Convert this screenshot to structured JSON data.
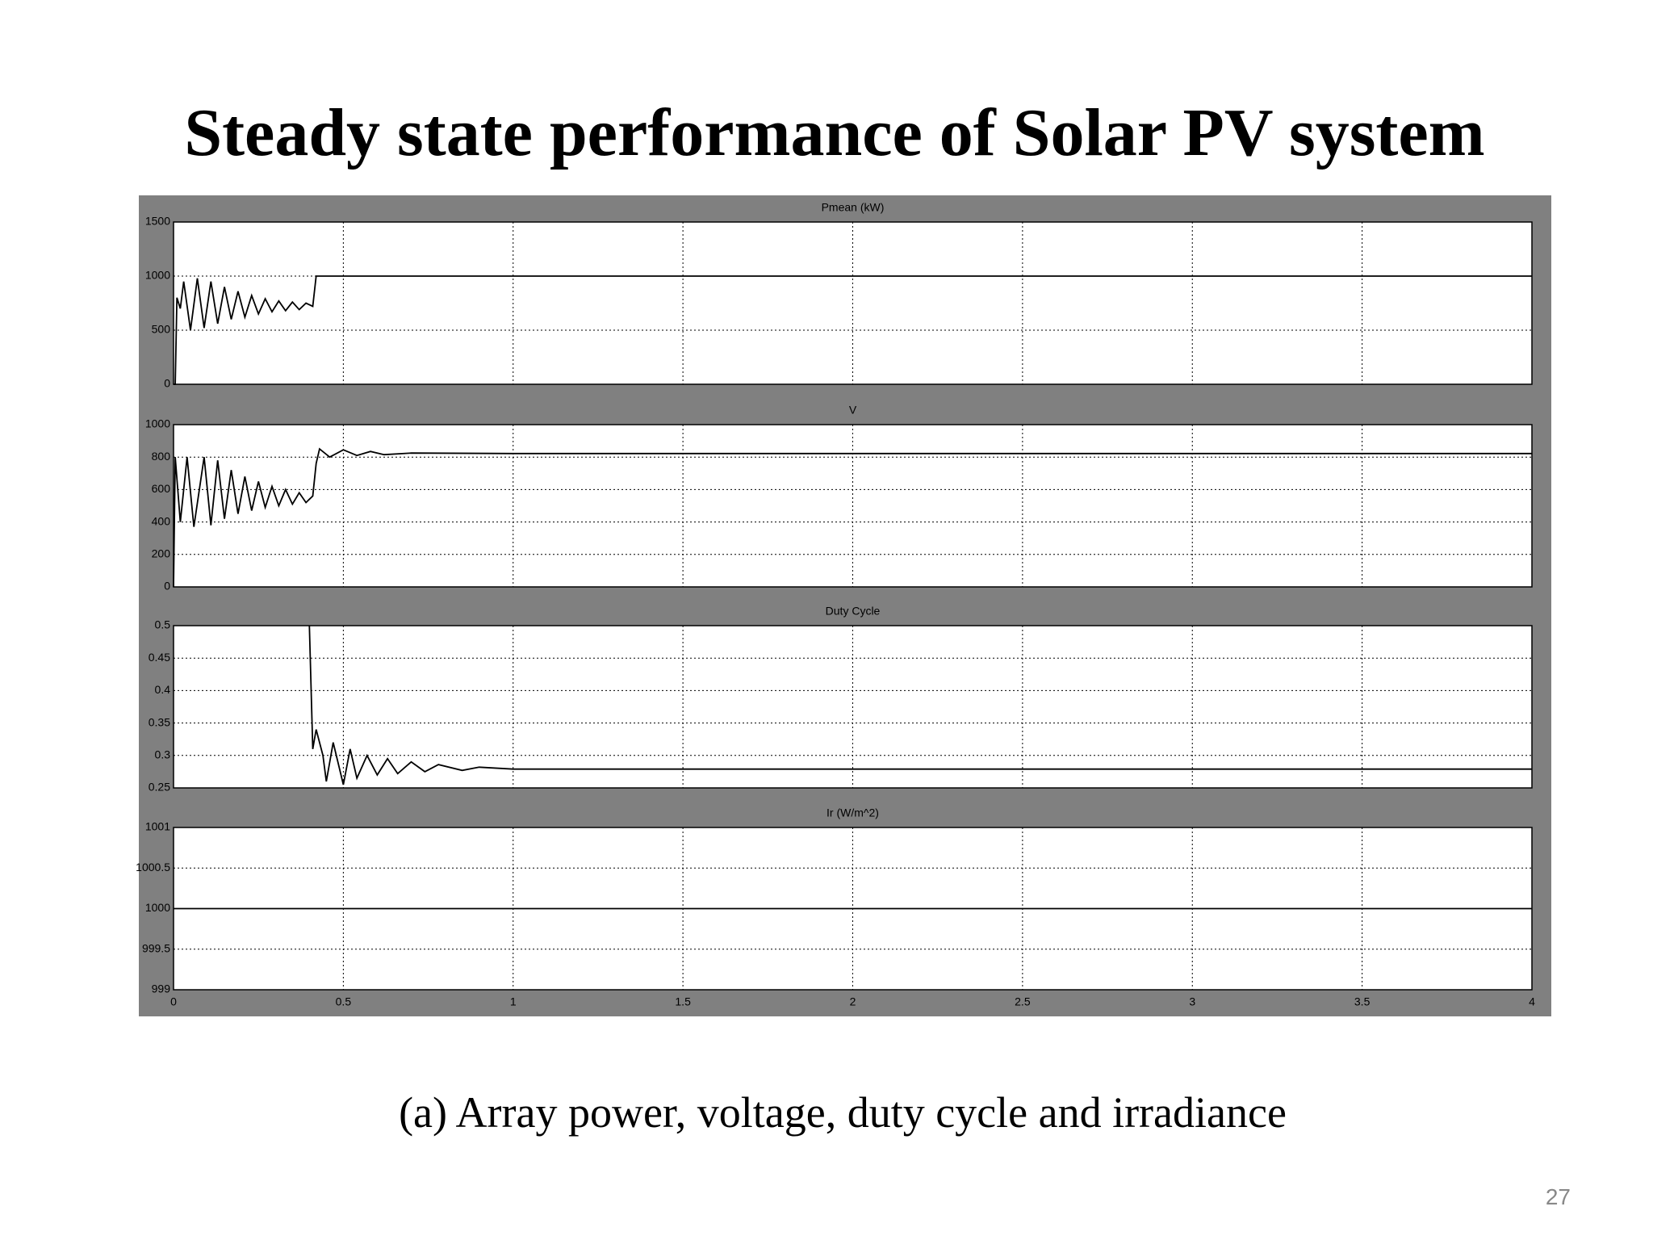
{
  "title": "Steady state performance of Solar PV system",
  "caption": "(a) Array power, voltage, duty cycle and irradiance",
  "page_number": "27",
  "chart_data": [
    {
      "type": "line",
      "title": "Pmean (kW)",
      "x": [
        0,
        0.005,
        0.01,
        0.02,
        0.03,
        0.05,
        0.07,
        0.09,
        0.11,
        0.13,
        0.15,
        0.17,
        0.19,
        0.21,
        0.23,
        0.25,
        0.27,
        0.29,
        0.31,
        0.33,
        0.35,
        0.37,
        0.39,
        0.41,
        0.42,
        4
      ],
      "series": [
        {
          "name": "Pmean",
          "color": "#000000",
          "values": [
            0,
            0,
            800,
            700,
            950,
            500,
            980,
            520,
            950,
            560,
            900,
            600,
            860,
            620,
            820,
            650,
            790,
            670,
            770,
            680,
            760,
            690,
            750,
            720,
            1000,
            1000
          ]
        }
      ],
      "xlim": [
        0,
        4
      ],
      "xticks": [
        0,
        0.5,
        1,
        1.5,
        2,
        2.5,
        3,
        3.5,
        4
      ],
      "ylim": [
        0,
        1500
      ],
      "yticks": [
        0,
        500,
        1000,
        1500
      ],
      "grid": true
    },
    {
      "type": "line",
      "title": "V",
      "x": [
        0,
        0.005,
        0.02,
        0.04,
        0.06,
        0.09,
        0.11,
        0.13,
        0.15,
        0.17,
        0.19,
        0.21,
        0.23,
        0.25,
        0.27,
        0.29,
        0.31,
        0.33,
        0.35,
        0.37,
        0.39,
        0.41,
        0.42,
        0.43,
        0.46,
        0.5,
        0.54,
        0.58,
        0.62,
        0.7,
        1,
        4
      ],
      "series": [
        {
          "name": "V",
          "color": "#000000",
          "values": [
            0,
            800,
            400,
            800,
            370,
            800,
            380,
            780,
            420,
            720,
            450,
            680,
            470,
            650,
            490,
            620,
            500,
            600,
            510,
            580,
            520,
            560,
            760,
            850,
            800,
            845,
            810,
            835,
            815,
            825,
            822,
            822
          ]
        }
      ],
      "xlim": [
        0,
        4
      ],
      "xticks": [
        0,
        0.5,
        1,
        1.5,
        2,
        2.5,
        3,
        3.5,
        4
      ],
      "ylim": [
        0,
        1000
      ],
      "yticks": [
        0,
        200,
        400,
        600,
        800,
        1000
      ],
      "grid": true
    },
    {
      "type": "line",
      "title": "Duty Cycle",
      "x": [
        0.4,
        0.41,
        0.42,
        0.44,
        0.45,
        0.47,
        0.5,
        0.52,
        0.54,
        0.57,
        0.6,
        0.63,
        0.66,
        0.7,
        0.74,
        0.78,
        0.85,
        0.9,
        1,
        4
      ],
      "series": [
        {
          "name": "Duty Cycle",
          "color": "#000000",
          "values": [
            0.5,
            0.31,
            0.34,
            0.3,
            0.26,
            0.32,
            0.255,
            0.31,
            0.265,
            0.3,
            0.27,
            0.295,
            0.272,
            0.29,
            0.275,
            0.286,
            0.277,
            0.282,
            0.279,
            0.279
          ]
        }
      ],
      "xlim": [
        0,
        4
      ],
      "xticks": [
        0,
        0.5,
        1,
        1.5,
        2,
        2.5,
        3,
        3.5,
        4
      ],
      "ylim": [
        0.25,
        0.5
      ],
      "yticks": [
        0.25,
        0.3,
        0.35,
        0.4,
        0.45,
        0.5
      ],
      "grid": true
    },
    {
      "type": "line",
      "title": "Ir (W/m^2)",
      "x": [
        0,
        4
      ],
      "series": [
        {
          "name": "Ir",
          "color": "#000000",
          "values": [
            1000,
            1000
          ]
        }
      ],
      "xlim": [
        0,
        4
      ],
      "xticks": [
        0,
        0.5,
        1,
        1.5,
        2,
        2.5,
        3,
        3.5,
        4
      ],
      "ylim": [
        999,
        1001
      ],
      "yticks": [
        999,
        999.5,
        1000,
        1000.5,
        1001
      ],
      "grid": true
    }
  ]
}
